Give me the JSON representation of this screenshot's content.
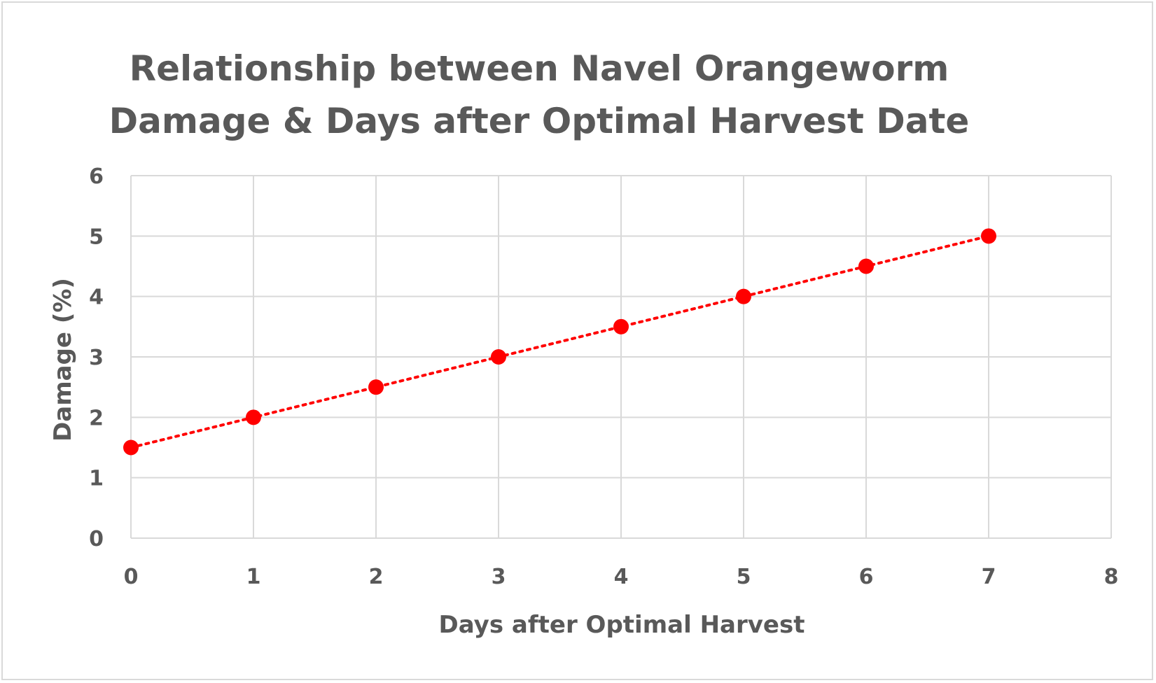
{
  "chart_data": {
    "type": "scatter",
    "title_lines": [
      "Relationship between Navel Orangeworm",
      "Damage & Days after Optimal Harvest Date"
    ],
    "xlabel": "Days after Optimal Harvest",
    "ylabel": "Damage (%)",
    "xlim": [
      0,
      8
    ],
    "ylim": [
      0,
      6
    ],
    "x_ticks": [
      0,
      1,
      2,
      3,
      4,
      5,
      6,
      7,
      8
    ],
    "y_ticks": [
      0,
      1,
      2,
      3,
      4,
      5,
      6
    ],
    "grid": true,
    "legend": "none",
    "trendline": "linear, dotted",
    "series": [
      {
        "x": [
          0,
          1,
          2,
          3,
          4,
          5,
          6,
          7
        ],
        "y": [
          1.5,
          2.0,
          2.5,
          3.0,
          3.5,
          4.0,
          4.5,
          5.0
        ],
        "color": "#ff0000"
      }
    ],
    "colors": {
      "text": "#595959",
      "grid": "#d9d9d9",
      "marker": "#ff0000",
      "trendline": "#ff0000"
    }
  }
}
